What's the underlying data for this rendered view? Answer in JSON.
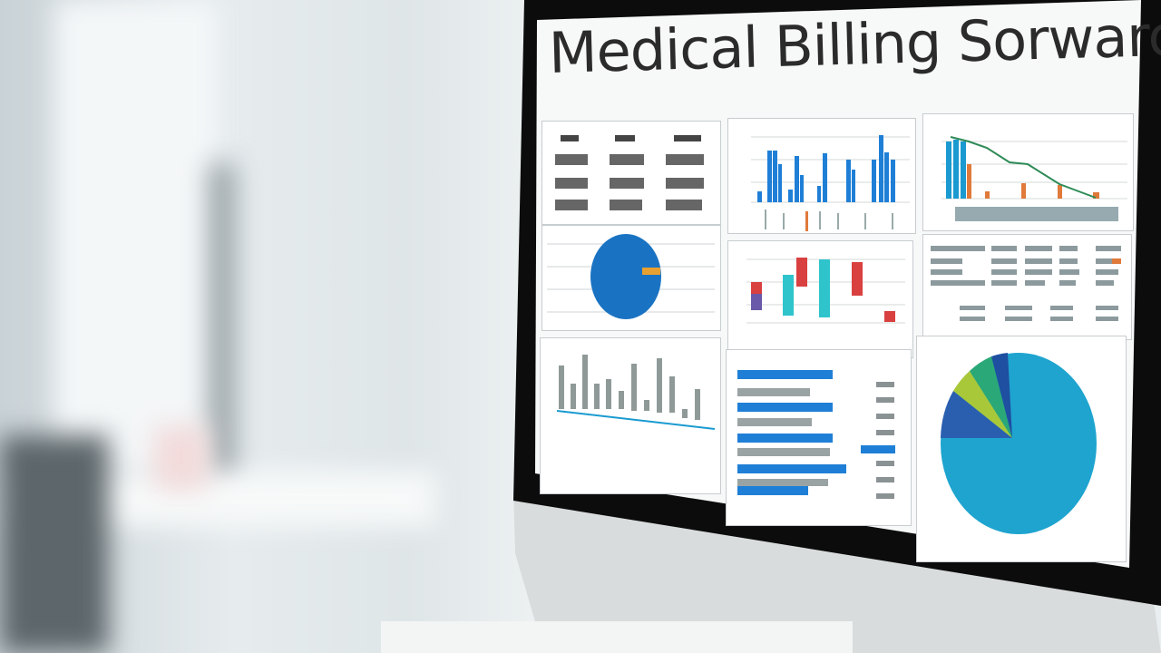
{
  "screen": {
    "title": "Medical Billing Sorwarce"
  },
  "colors": {
    "accent_blue": "#1f7fd6",
    "teal": "#2fc4cc",
    "red": "#d94040",
    "orange": "#e07a3a",
    "green_line": "#2e8b57",
    "pie_main": "#1ea4cf"
  }
}
